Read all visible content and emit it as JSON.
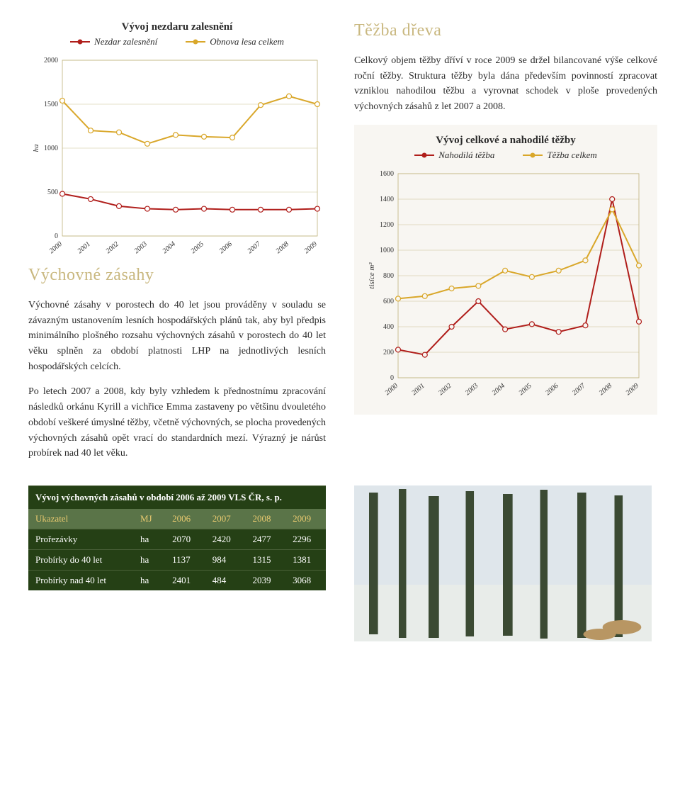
{
  "left": {
    "chart1_title": "Vývoj nezdaru zalesnění",
    "chart1": {
      "type": "line",
      "x": [
        "2000",
        "2001",
        "2002",
        "2003",
        "2004",
        "2005",
        "2006",
        "2007",
        "2008",
        "2009"
      ],
      "series": [
        {
          "name": "Nezdar zalesnění",
          "color": "#b01e1b",
          "values": [
            480,
            420,
            340,
            310,
            300,
            310,
            300,
            300,
            300,
            310
          ]
        },
        {
          "name": "Obnova lesa celkem",
          "color": "#d9a72a",
          "values": [
            1540,
            1200,
            1180,
            1050,
            1150,
            1130,
            1120,
            1490,
            1590,
            1500
          ]
        }
      ],
      "ylim": [
        0,
        2000
      ],
      "ytick_step": 500,
      "y_unit": "ha",
      "grid_color": "#bfb27a",
      "bg": "#ffffff",
      "label_fontsize": 10,
      "title_fontsize": 15
    },
    "section2_title": "Výchovné zásahy",
    "para1": "Výchovné zásahy v porostech do 40 let jsou prováděny v souladu se závazným ustanovením lesních hospodářských plánů tak, aby byl předpis minimálního plošného rozsahu výchovných zásahů v porostech do 40 let věku splněn za období platnosti LHP na jednotlivých lesních hospodářských celcích.",
    "para2": "Po letech 2007 a 2008, kdy byly vzhledem k přednostnímu zpracování následků orkánu Kyrill a vichřice Emma zastaveny po většinu dvouletého období veškeré úmyslné těžby, včetně výchovných, se plocha provedených výchovných zásahů opět vrací do standardních mezí. Výrazný je nárůst probírek nad 40 let věku."
  },
  "right": {
    "section1_title": "Těžba dřeva",
    "para1": "Celkový objem těžby dříví v roce 2009 se držel bilancované výše celkové roční těžby. Struktura těžby byla dána především povinností zpracovat vzniklou nahodilou těžbu a vyrovnat schodek v ploše provedených výchovných zásahů z let 2007 a 2008.",
    "chart2_title": "Vývoj celkové a nahodilé těžby",
    "chart2": {
      "type": "line",
      "x": [
        "2000",
        "2001",
        "2002",
        "2003",
        "2004",
        "2005",
        "2006",
        "2007",
        "2008",
        "2009"
      ],
      "series": [
        {
          "name": "Nahodilá těžba",
          "color": "#b01e1b",
          "values": [
            220,
            180,
            400,
            600,
            380,
            420,
            360,
            410,
            1400,
            440
          ]
        },
        {
          "name": "Těžba celkem",
          "color": "#d9a72a",
          "values": [
            620,
            640,
            700,
            720,
            840,
            790,
            840,
            920,
            1320,
            880
          ]
        }
      ],
      "ylim": [
        0,
        1600
      ],
      "ytick_step": 200,
      "y_unit": "tisíce m³",
      "grid_color": "#bfb27a",
      "bg": "#f8f6f2",
      "label_fontsize": 10,
      "title_fontsize": 15
    }
  },
  "table": {
    "caption": "Vývoj výchovných zásahů v období 2006 až 2009 VLS ČR, s. p.",
    "columns": [
      "Ukazatel",
      "MJ",
      "2006",
      "2007",
      "2008",
      "2009"
    ],
    "col_color": "#e8c96f",
    "header_bg": "#5a7448",
    "body_bg": "#254015",
    "rows": [
      [
        "Prořezávky",
        "ha",
        "2070",
        "2420",
        "2477",
        "2296"
      ],
      [
        "Probírky do 40 let",
        "ha",
        "1137",
        "984",
        "1315",
        "1381"
      ],
      [
        "Probírky nad 40 let",
        "ha",
        "2401",
        "484",
        "2039",
        "3068"
      ]
    ]
  }
}
